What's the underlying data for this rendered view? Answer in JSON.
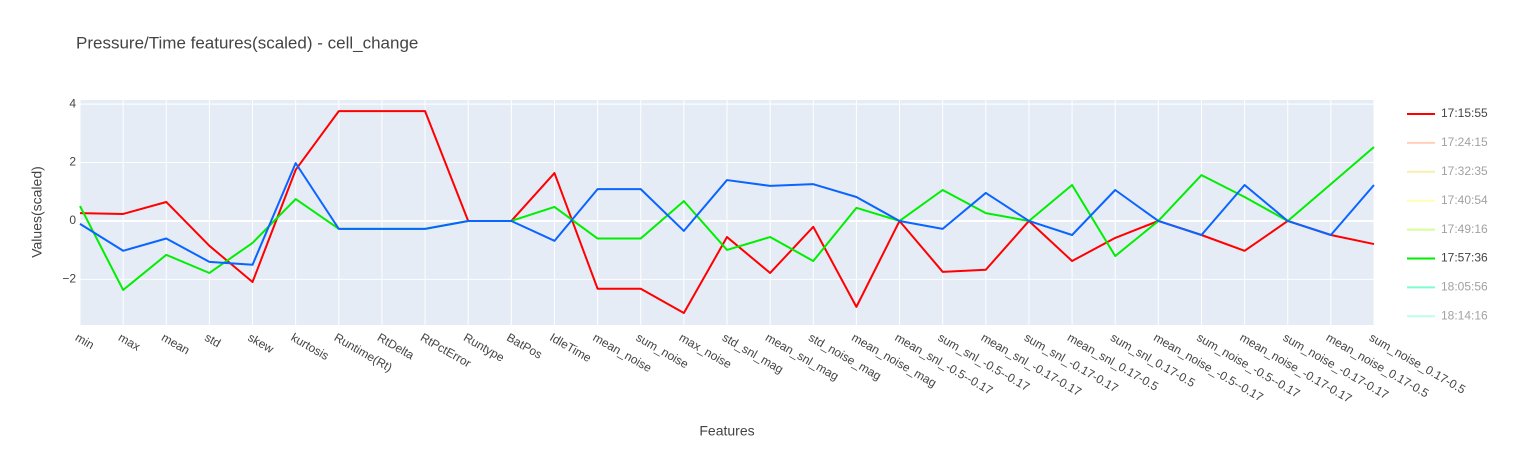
{
  "chart_data": {
    "type": "line",
    "title": "Pressure/Time features(scaled) - cell_change",
    "x_label": "Features",
    "y_label": "Values(scaled)",
    "categories": [
      "min",
      "max",
      "mean",
      "std",
      "skew",
      "kurtosis",
      "Runtime(Rt)",
      "RtDelta",
      "RtPctError",
      "Runtype",
      "BatPos",
      "IdleTime",
      "mean_noise",
      "sum_noise",
      "max_noise",
      "std_snl_mag",
      "mean_snl_mag",
      "std_noise_mag",
      "mean_noise_mag",
      "mean_snl_-0.5--0.17",
      "sum_snl_-0.5--0.17",
      "mean_snl_-0.17-0.17",
      "sum_snl_-0.17-0.17",
      "mean_snl_0.17-0.5",
      "sum_snl_0.17-0.5",
      "mean_noise_-0.5--0.17",
      "sum_noise_-0.5--0.17",
      "mean_noise_-0.17-0.17",
      "sum_noise_-0.17-0.17",
      "mean_noise_0.17-0.5",
      "sum_noise_0.17-0.5"
    ],
    "series": [
      {
        "name": "17:15:55",
        "color": "#ff0000",
        "visible": true,
        "values": [
          0.27,
          0.24,
          0.65,
          -0.85,
          -2.09,
          1.75,
          3.76,
          3.76,
          3.76,
          0,
          0,
          1.64,
          -2.32,
          -2.32,
          -3.15,
          -0.55,
          -1.78,
          -0.2,
          -2.94,
          0,
          -1.74,
          -1.67,
          0,
          -1.37,
          -0.58,
          0,
          -0.48,
          -1.02,
          0,
          -0.48,
          -0.79
        ]
      },
      {
        "name": "17:24:15",
        "color": "#ffa07a",
        "visible": false
      },
      {
        "name": "17:32:35",
        "color": "#f0e060",
        "visible": false
      },
      {
        "name": "17:40:54",
        "color": "#ffff66",
        "visible": false
      },
      {
        "name": "17:49:16",
        "color": "#adff2f",
        "visible": false
      },
      {
        "name": "17:57:36",
        "color": "#00ee00",
        "visible": true,
        "values": [
          0.51,
          -2.36,
          -1.16,
          -1.78,
          -0.75,
          0.75,
          -0.27,
          -0.27,
          -0.27,
          0,
          0,
          0.48,
          -0.6,
          -0.6,
          0.68,
          -0.99,
          -0.55,
          -1.37,
          0.45,
          0,
          1.06,
          0.27,
          0,
          1.23,
          -1.2,
          0,
          1.57,
          0.82,
          0,
          1.26,
          2.53
        ]
      },
      {
        "name": "18:05:56",
        "color": "#00fa9a",
        "visible": false
      },
      {
        "name": "18:14:16",
        "color": "#7fffd4",
        "visible": false
      },
      {
        "color": "#0a64ff",
        "visible": true,
        "values": [
          -0.1,
          -1.02,
          -0.6,
          -1.4,
          -1.5,
          1.98,
          -0.27,
          -0.27,
          -0.27,
          0,
          0,
          -0.68,
          1.09,
          1.09,
          -0.34,
          1.4,
          1.2,
          1.26,
          0.82,
          0,
          -0.27,
          0.96,
          0,
          -0.48,
          1.06,
          0,
          -0.48,
          1.23,
          0,
          -0.48,
          1.23
        ]
      }
    ],
    "ylim": [
      -3.56,
      4.14
    ],
    "yticks": [
      {
        "value": -2,
        "label": "−2"
      },
      0,
      2,
      4
    ],
    "grid": true,
    "legend": "right"
  }
}
